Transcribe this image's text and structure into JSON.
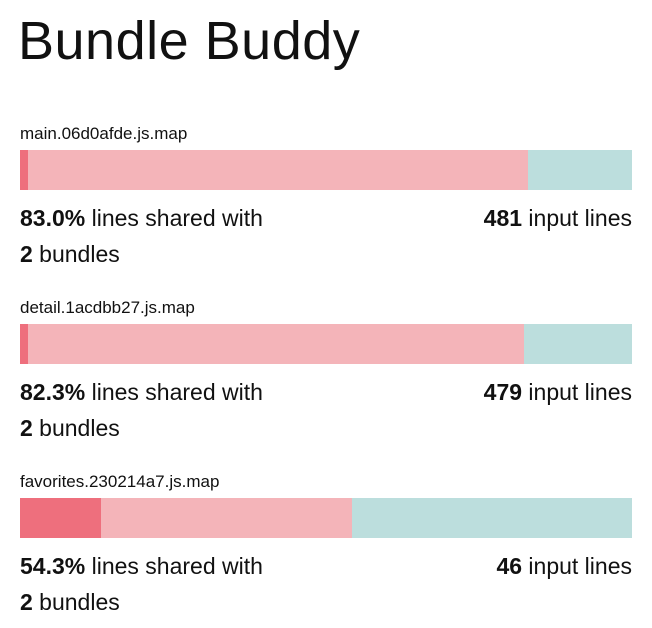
{
  "app": {
    "title": "Bundle Buddy"
  },
  "colors": {
    "unique_strong": "#ee6f7d",
    "shared_light": "#f4b4b9",
    "remaining": "#bcdedd"
  },
  "bundles": [
    {
      "name": "main.06d0afde.js.map",
      "shared_pct": "83.0%",
      "shared_text": " lines shared with",
      "bundle_count": "2",
      "bundles_text": " bundles",
      "input_lines": "481",
      "input_lines_text": " input lines",
      "bar_fractions": {
        "strong": 0.013,
        "light": 0.817,
        "remaining": 0.17
      }
    },
    {
      "name": "detail.1acdbb27.js.map",
      "shared_pct": "82.3%",
      "shared_text": " lines shared with",
      "bundle_count": "2",
      "bundles_text": " bundles",
      "input_lines": "479",
      "input_lines_text": " input lines",
      "bar_fractions": {
        "strong": 0.013,
        "light": 0.81,
        "remaining": 0.177
      }
    },
    {
      "name": "favorites.230214a7.js.map",
      "shared_pct": "54.3%",
      "shared_text": " lines shared with",
      "bundle_count": "2",
      "bundles_text": " bundles",
      "input_lines": "46",
      "input_lines_text": " input lines",
      "bar_fractions": {
        "strong": 0.132,
        "light": 0.411,
        "remaining": 0.457
      }
    }
  ]
}
